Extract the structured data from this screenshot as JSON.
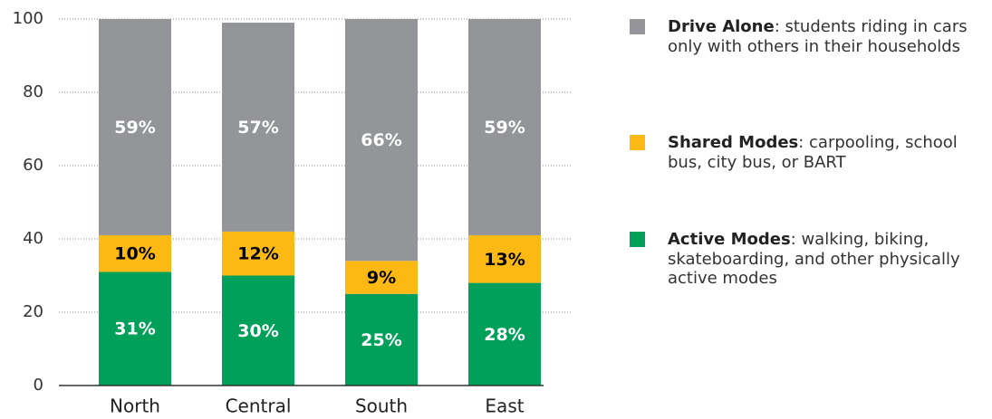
{
  "chart_data": {
    "type": "stacked_bar",
    "categories": [
      "North",
      "Central",
      "South",
      "East"
    ],
    "series": [
      {
        "name": "Active Modes",
        "color": "#00a05a",
        "label_color": "#ffffff",
        "values": [
          31,
          30,
          25,
          28
        ],
        "value_labels": [
          "31%",
          "30%",
          "25%",
          "28%"
        ],
        "description": ": walking, biking, skateboarding, and other physically active modes"
      },
      {
        "name": "Shared Modes",
        "color": "#fdb913",
        "label_color": "#000000",
        "values": [
          10,
          12,
          9,
          13
        ],
        "value_labels": [
          "10%",
          "12%",
          "9%",
          "13%"
        ],
        "description": ": carpooling, school bus, city bus, or BART"
      },
      {
        "name": "Drive Alone",
        "color": "#939598",
        "label_color": "#ffffff",
        "values": [
          59,
          57,
          66,
          59
        ],
        "value_labels": [
          "59%",
          "57%",
          "66%",
          "59%"
        ],
        "description": ": students riding in cars only with others in their households"
      }
    ],
    "ylim": [
      0,
      100
    ],
    "yticks": [
      0,
      20,
      40,
      60,
      80,
      100
    ],
    "grid": true
  }
}
